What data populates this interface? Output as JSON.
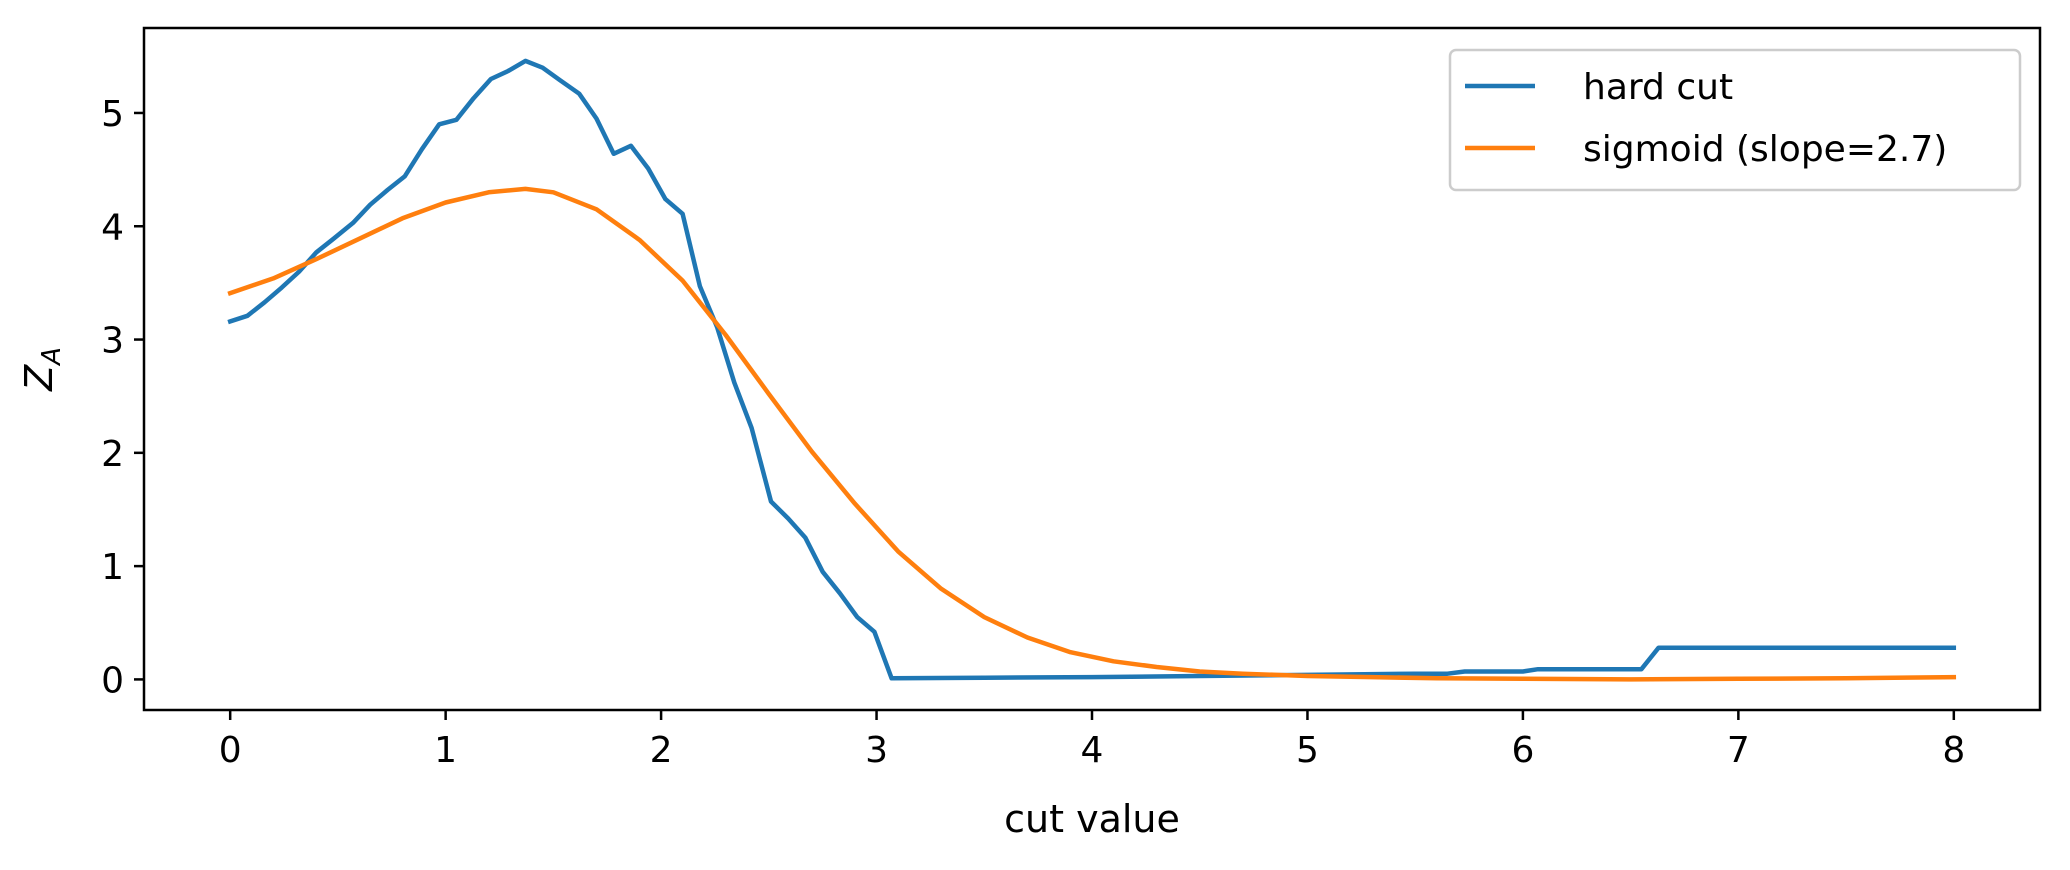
{
  "chart_data": {
    "type": "line",
    "title": "",
    "xlabel": "cut value",
    "ylabel": "Z",
    "ylabel_subscript": "A",
    "xlim": [
      -0.4,
      8.4
    ],
    "ylim": [
      -0.27,
      5.75
    ],
    "xticks": [
      0,
      1,
      2,
      3,
      4,
      5,
      6,
      7,
      8
    ],
    "yticks": [
      0,
      1,
      2,
      3,
      4,
      5
    ],
    "grid": false,
    "legend_position": "top-right",
    "series": [
      {
        "name": "hard cut",
        "color": "#1f77b4",
        "x": [
          0,
          0.08,
          0.16,
          0.24,
          0.32,
          0.4,
          0.48,
          0.57,
          0.65,
          0.73,
          0.81,
          0.89,
          0.97,
          1.05,
          1.13,
          1.21,
          1.29,
          1.37,
          1.45,
          1.53,
          1.62,
          1.7,
          1.78,
          1.86,
          1.94,
          2.02,
          2.1,
          2.18,
          2.26,
          2.34,
          2.42,
          2.51,
          2.59,
          2.67,
          2.75,
          2.83,
          2.91,
          2.99,
          3.07,
          3.5,
          4.0,
          4.5,
          5.0,
          5.5,
          5.65,
          5.73,
          6.0,
          6.07,
          6.5,
          6.55,
          6.63,
          7.0,
          8.0
        ],
        "y": [
          3.16,
          3.21,
          3.33,
          3.46,
          3.6,
          3.77,
          3.89,
          4.03,
          4.19,
          4.32,
          4.44,
          4.68,
          4.9,
          4.94,
          5.13,
          5.3,
          5.37,
          5.46,
          5.4,
          5.29,
          5.17,
          4.95,
          4.64,
          4.71,
          4.51,
          4.24,
          4.11,
          3.47,
          3.11,
          2.62,
          2.22,
          1.57,
          1.42,
          1.25,
          0.95,
          0.76,
          0.55,
          0.42,
          0.01,
          0.015,
          0.02,
          0.03,
          0.04,
          0.05,
          0.05,
          0.07,
          0.07,
          0.09,
          0.09,
          0.09,
          0.28,
          0.28,
          0.28
        ]
      },
      {
        "name": "sigmoid (slope=2.7)",
        "color": "#ff7f0e",
        "x": [
          0,
          0.2,
          0.4,
          0.6,
          0.8,
          1.0,
          1.2,
          1.37,
          1.5,
          1.7,
          1.9,
          2.1,
          2.3,
          2.5,
          2.7,
          2.9,
          3.1,
          3.3,
          3.5,
          3.7,
          3.9,
          4.1,
          4.3,
          4.5,
          4.7,
          5.0,
          5.3,
          5.6,
          6.0,
          6.5,
          7.0,
          7.5,
          8.0
        ],
        "y": [
          3.41,
          3.54,
          3.71,
          3.89,
          4.07,
          4.21,
          4.3,
          4.33,
          4.3,
          4.15,
          3.88,
          3.52,
          3.04,
          2.52,
          2.01,
          1.55,
          1.13,
          0.8,
          0.55,
          0.37,
          0.24,
          0.16,
          0.11,
          0.07,
          0.05,
          0.03,
          0.02,
          0.01,
          0.005,
          0.0,
          0.005,
          0.01,
          0.02
        ]
      }
    ]
  }
}
